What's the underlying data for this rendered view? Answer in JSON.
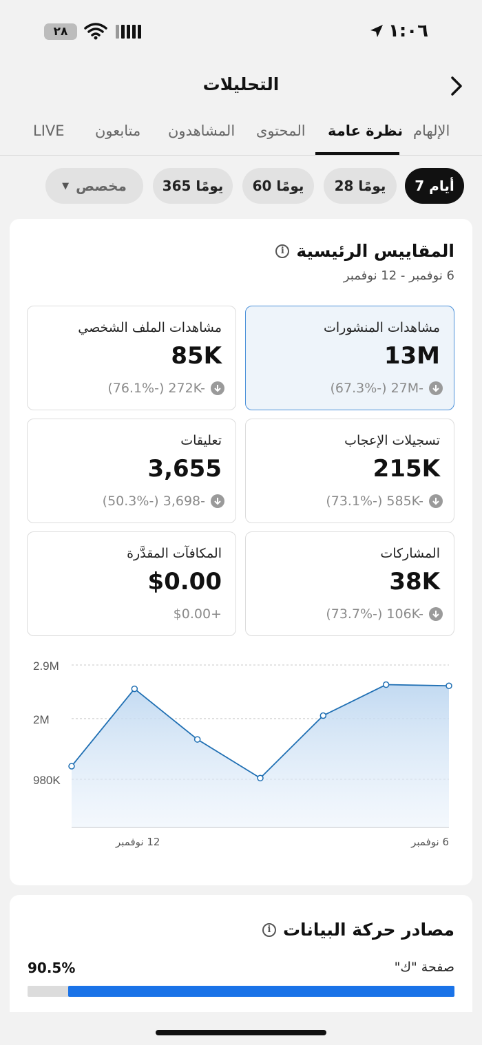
{
  "status_bar": {
    "time": "١:٠٦",
    "battery": "٢٨"
  },
  "header": {
    "title": "التحليلات"
  },
  "tabs": [
    {
      "label": "الإلهام",
      "active": false
    },
    {
      "label": "نظرة عامة",
      "active": true
    },
    {
      "label": "المحتوى",
      "active": false
    },
    {
      "label": "المشاهدون",
      "active": false
    },
    {
      "label": "متابعون",
      "active": false
    },
    {
      "label": "LIVE",
      "active": false
    }
  ],
  "filters": [
    {
      "label": "7 أيام",
      "active": true
    },
    {
      "label": "28 يومًا",
      "active": false
    },
    {
      "label": "60 يومًا",
      "active": false
    },
    {
      "label": "365 يومًا",
      "active": false
    },
    {
      "label": "مخصص",
      "active": false
    }
  ],
  "key_metrics": {
    "title": "المقاييس الرئيسية",
    "date_range": "6 نوفمبر - 12 نوفمبر",
    "tiles": [
      {
        "label": "مشاهدات المنشورات",
        "value": "13M",
        "change": "(67.3%-) 27M-",
        "selected": true
      },
      {
        "label": "مشاهدات الملف الشخصي",
        "value": "85K",
        "change": "(76.1%-) 272K-",
        "selected": false
      },
      {
        "label": "تسجيلات الإعجاب",
        "value": "215K",
        "change": "(73.1%-) 585K-",
        "selected": false
      },
      {
        "label": "تعليقات",
        "value": "3,655",
        "change": "(50.3%-) 3,698-",
        "selected": false
      },
      {
        "label": "المشاركات",
        "value": "38K",
        "change": "(73.7%-) 106K-",
        "selected": false
      },
      {
        "label": "المكافآت المقدَّرة",
        "value": "$0.00",
        "change": "$0.00+",
        "selected": false
      }
    ]
  },
  "chart_data": {
    "type": "area",
    "title": "",
    "xlabel": "",
    "ylabel": "",
    "x_tick_labels": [
      "12 نوفمبر",
      "6 نوفمبر"
    ],
    "y_tick_labels": [
      "2.9M",
      "2M",
      "980K"
    ],
    "y_ticks": [
      2900000,
      2000000,
      980000
    ],
    "ylim": [
      0,
      2900000
    ],
    "x": [
      "12 نوفمبر",
      "11 نوفمبر",
      "10 نوفمبر",
      "9 نوفمبر",
      "8 نوفمبر",
      "7 نوفمبر",
      "6 نوفمبر"
    ],
    "series": [
      {
        "values": [
          1200000,
          2500000,
          1650000,
          1000000,
          2050000,
          2570000,
          2550000
        ]
      }
    ],
    "grid": true,
    "color": "#1f6fb3"
  },
  "traffic_sources": {
    "title": "مصادر حركة البيانات",
    "items": [
      {
        "label": "صفحة \"ك\"",
        "percent_label": "90.5%",
        "fraction": 0.905
      }
    ]
  },
  "colors": {
    "accent": "#1a73e8",
    "selected_tile_border": "#4a90d9",
    "line": "#1f6fb3"
  }
}
